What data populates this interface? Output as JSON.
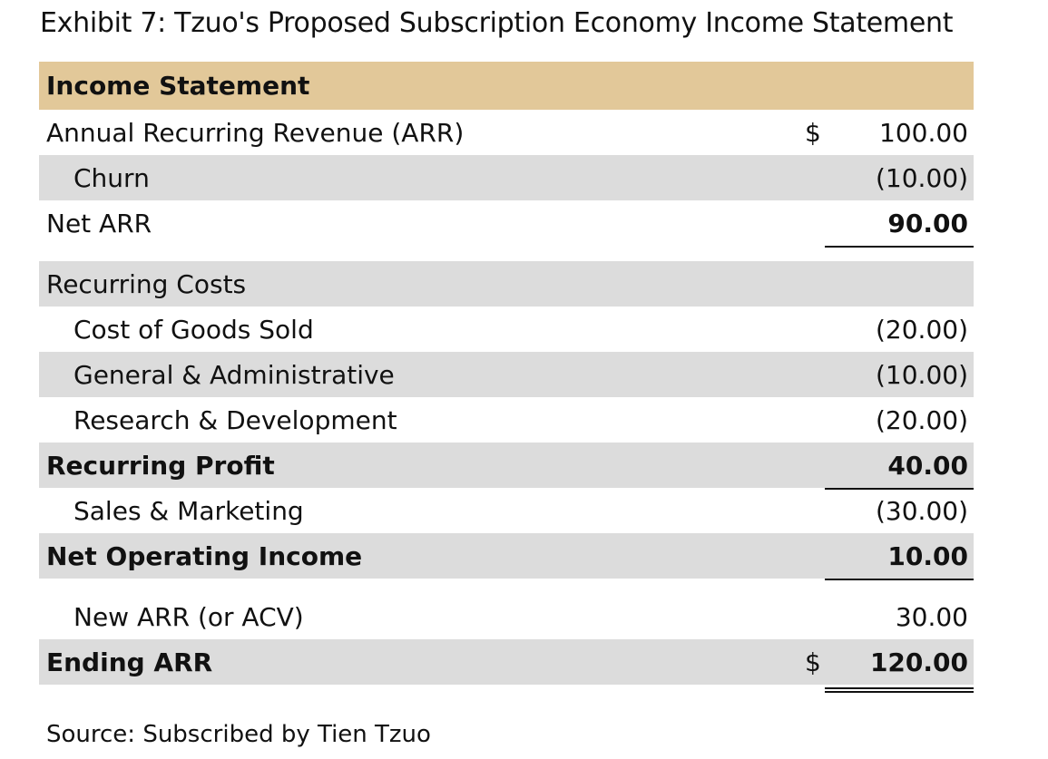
{
  "title": "Exhibit 7: Tzuo's Proposed Subscription Economy Income Statement",
  "header": "Income Statement",
  "rows": {
    "arr": {
      "label": "Annual Recurring Revenue (ARR)",
      "currency": "$",
      "value": "100.00"
    },
    "churn": {
      "label": "Churn",
      "value": "(10.00)"
    },
    "net_arr": {
      "label": "Net ARR",
      "value": "90.00"
    },
    "recurring_costs": {
      "label": "Recurring Costs"
    },
    "cogs": {
      "label": "Cost of Goods Sold",
      "value": "(20.00)"
    },
    "ga": {
      "label": "General & Administrative",
      "value": "(10.00)"
    },
    "rd": {
      "label": "Research & Development",
      "value": "(20.00)"
    },
    "recurring_profit": {
      "label": "Recurring Profit",
      "value": "40.00"
    },
    "sm": {
      "label": "Sales & Marketing",
      "value": "(30.00)"
    },
    "noi": {
      "label": "Net Operating Income",
      "value": "10.00"
    },
    "new_arr": {
      "label": "New ARR (or ACV)",
      "value": "30.00"
    },
    "ending_arr": {
      "label": "Ending ARR",
      "currency": "$",
      "value": "120.00"
    }
  },
  "source": "Source: Subscribed by Tien Tzuo"
}
